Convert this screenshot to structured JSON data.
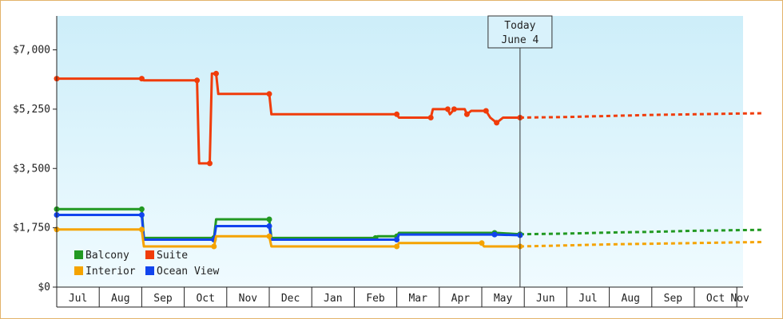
{
  "colors": {
    "balcony": "#229922",
    "suite": "#f03c0a",
    "interior": "#f5a300",
    "ocean_view": "#1144ee",
    "bg_top": "#cdeef9",
    "bg_bottom": "#f0fbff",
    "border": "#e2b36a"
  },
  "today_marker": {
    "line1": "Today",
    "line2": "June 4"
  },
  "chart_data": {
    "type": "line",
    "title": "",
    "xlabel": "",
    "ylabel": "",
    "ylim": [
      0,
      8000
    ],
    "yticks": [
      0,
      1750,
      3500,
      5250,
      7000
    ],
    "ytick_labels": [
      "$0",
      "$1,750",
      "$3,500",
      "$5,250",
      "$7,000"
    ],
    "months": [
      "Jul",
      "Aug",
      "Sep",
      "Oct",
      "Nov",
      "Dec",
      "Jan",
      "Feb",
      "Mar",
      "Apr",
      "May",
      "Jun",
      "Jul",
      "Aug",
      "Sep",
      "Oct",
      "Nov"
    ],
    "x_unit": "months since start of July (historical to June 4, projected after)",
    "today_x": 10.9,
    "legend": [
      {
        "name": "Balcony",
        "key": "balcony"
      },
      {
        "name": "Suite",
        "key": "suite"
      },
      {
        "name": "Interior",
        "key": "interior"
      },
      {
        "name": "Ocean View",
        "key": "ocean_view"
      }
    ],
    "series": [
      {
        "name": "Suite",
        "key": "suite",
        "points": [
          [
            0,
            6150
          ],
          [
            2.0,
            6150
          ],
          [
            2.05,
            6100
          ],
          [
            3.3,
            6100
          ],
          [
            3.35,
            3650
          ],
          [
            3.6,
            3650
          ],
          [
            3.65,
            6300
          ],
          [
            3.75,
            6300
          ],
          [
            3.8,
            5700
          ],
          [
            5.0,
            5700
          ],
          [
            5.05,
            5100
          ],
          [
            8.0,
            5100
          ],
          [
            8.05,
            5000
          ],
          [
            8.8,
            5000
          ],
          [
            8.85,
            5250
          ],
          [
            9.2,
            5250
          ],
          [
            9.25,
            5100
          ],
          [
            9.35,
            5250
          ],
          [
            9.6,
            5250
          ],
          [
            9.65,
            5100
          ],
          [
            9.75,
            5200
          ],
          [
            10.1,
            5200
          ],
          [
            10.2,
            5000
          ],
          [
            10.35,
            4850
          ],
          [
            10.5,
            5000
          ],
          [
            10.9,
            5000
          ]
        ],
        "projection": [
          [
            10.9,
            5000
          ],
          [
            12.0,
            5020
          ],
          [
            13.0,
            5050
          ],
          [
            14.0,
            5080
          ],
          [
            15.0,
            5100
          ],
          [
            16.0,
            5120
          ],
          [
            16.6,
            5130
          ]
        ]
      },
      {
        "name": "Balcony",
        "key": "balcony",
        "points": [
          [
            0,
            2300
          ],
          [
            2.0,
            2300
          ],
          [
            2.05,
            1450
          ],
          [
            3.7,
            1450
          ],
          [
            3.75,
            2000
          ],
          [
            5.0,
            2000
          ],
          [
            5.05,
            1450
          ],
          [
            7.5,
            1450
          ],
          [
            7.55,
            1500
          ],
          [
            8.0,
            1500
          ],
          [
            8.05,
            1600
          ],
          [
            10.3,
            1600
          ],
          [
            10.35,
            1600
          ],
          [
            10.9,
            1560
          ]
        ],
        "projection": [
          [
            10.9,
            1560
          ],
          [
            12.0,
            1580
          ],
          [
            13.0,
            1610
          ],
          [
            14.0,
            1630
          ],
          [
            15.0,
            1660
          ],
          [
            16.0,
            1680
          ],
          [
            16.6,
            1690
          ]
        ]
      },
      {
        "name": "Ocean View",
        "key": "ocean_view",
        "points": [
          [
            0,
            2130
          ],
          [
            2.0,
            2130
          ],
          [
            2.05,
            1400
          ],
          [
            3.7,
            1400
          ],
          [
            3.75,
            1800
          ],
          [
            5.0,
            1800
          ],
          [
            5.05,
            1400
          ],
          [
            8.0,
            1400
          ],
          [
            8.05,
            1550
          ],
          [
            10.3,
            1550
          ],
          [
            10.9,
            1530
          ]
        ]
      },
      {
        "name": "Interior",
        "key": "interior",
        "points": [
          [
            0,
            1700
          ],
          [
            2.0,
            1700
          ],
          [
            2.05,
            1200
          ],
          [
            3.7,
            1200
          ],
          [
            3.75,
            1500
          ],
          [
            5.0,
            1500
          ],
          [
            5.05,
            1200
          ],
          [
            8.0,
            1200
          ],
          [
            8.05,
            1300
          ],
          [
            10.0,
            1300
          ],
          [
            10.05,
            1200
          ],
          [
            10.9,
            1200
          ]
        ],
        "projection": [
          [
            10.9,
            1200
          ],
          [
            12.0,
            1230
          ],
          [
            13.0,
            1260
          ],
          [
            14.0,
            1280
          ],
          [
            15.0,
            1300
          ],
          [
            16.0,
            1320
          ],
          [
            16.6,
            1330
          ]
        ]
      }
    ],
    "grid": false,
    "legend_placement": "bottom-left"
  }
}
